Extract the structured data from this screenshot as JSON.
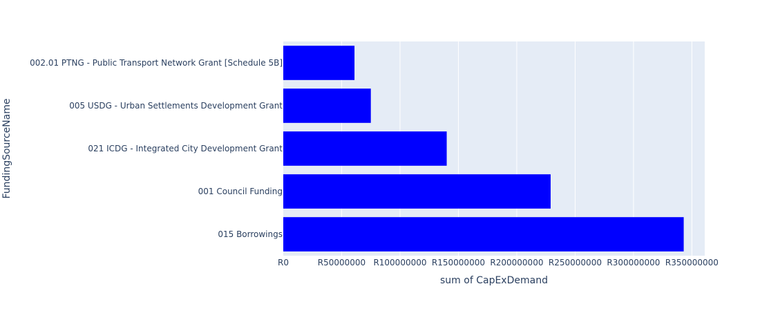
{
  "chart_data": {
    "type": "bar",
    "orientation": "horizontal",
    "categories": [
      "002.01 PTNG - Public Transport Network Grant [Schedule 5B]",
      "005 USDG - Urban Settlements Development Grant",
      "021 ICDG - Integrated City Development Grant",
      "001 Council Funding",
      "015 Borrowings"
    ],
    "values": [
      61000000,
      75000000,
      140000000,
      229000000,
      343000000
    ],
    "xlabel": "sum of CapExDemand",
    "ylabel": "FundingSourceName",
    "xlim": [
      0,
      361000000
    ],
    "xticks": [
      0,
      50000000,
      100000000,
      150000000,
      200000000,
      250000000,
      300000000,
      350000000
    ],
    "xtick_labels": [
      "R0",
      "R50000000",
      "R100000000",
      "R150000000",
      "R200000000",
      "R250000000",
      "R300000000",
      "R350000000"
    ],
    "grid": true,
    "colors": {
      "bar": "#0000ff",
      "plot_background": "#e5ecf6",
      "gridline": "#ffffff",
      "text": "#2a3f5f"
    }
  }
}
